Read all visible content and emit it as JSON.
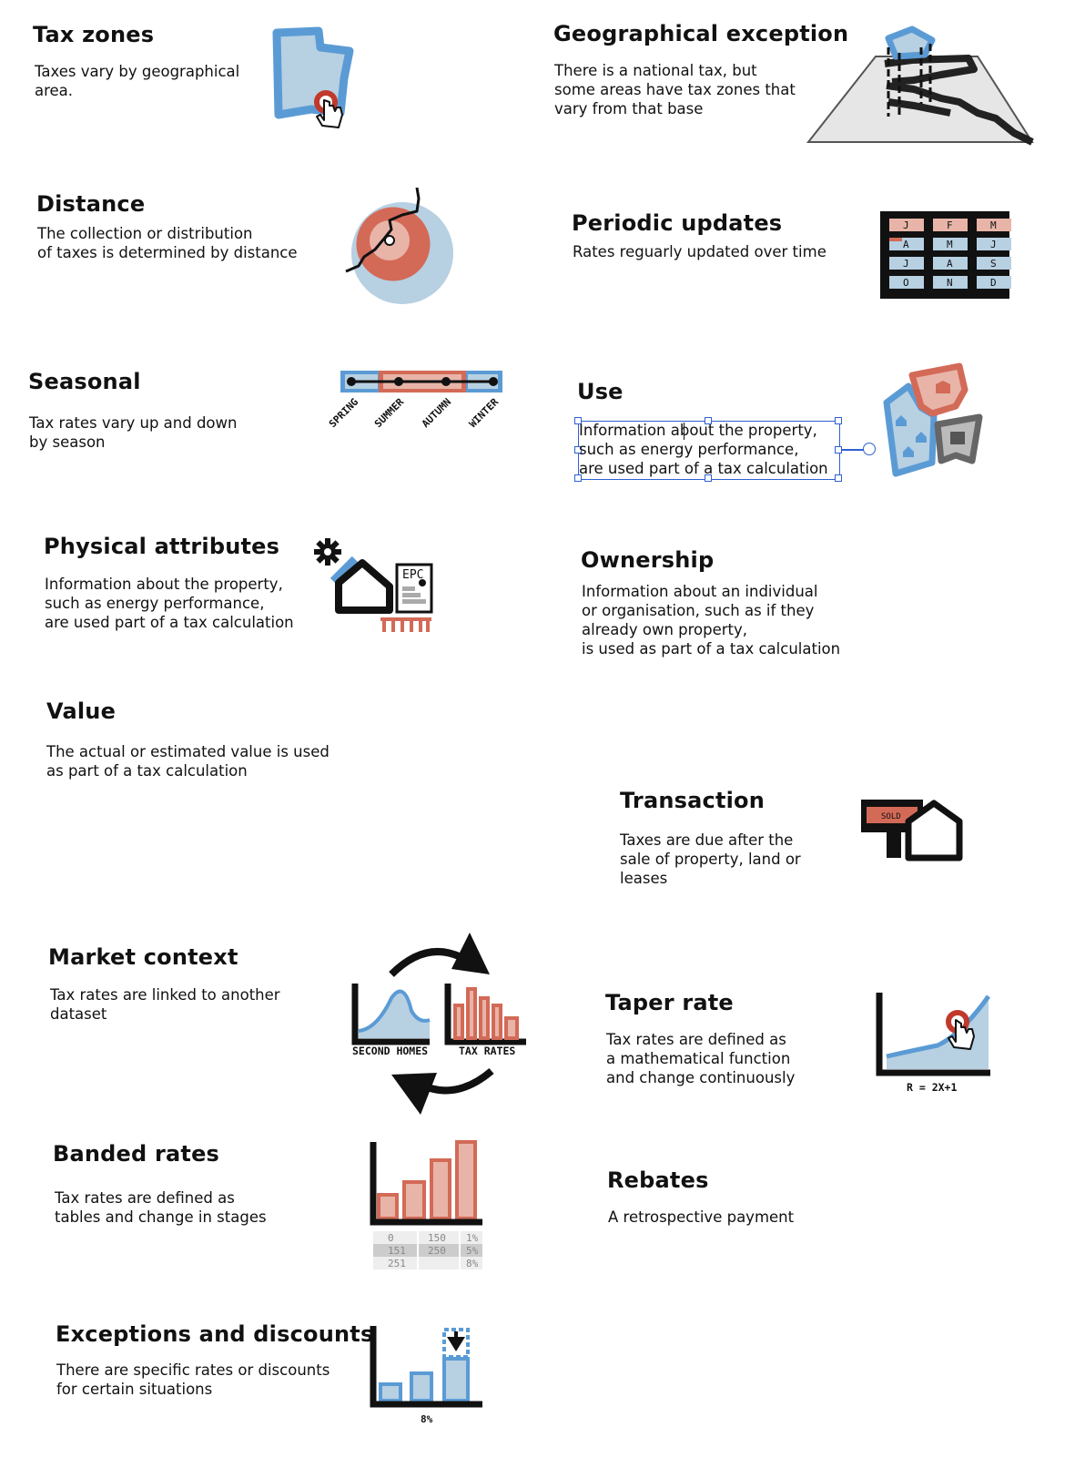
{
  "colors": {
    "blue": "#5b9bd5",
    "light_blue": "#b7d0e2",
    "red": "#d36a57",
    "light_red": "#e8b4a8",
    "black": "#111111",
    "grey": "#777777",
    "selection": "#2f5fd0"
  },
  "cards": {
    "tax_zones": {
      "title": "Tax zones",
      "desc": "Taxes vary by geographical\narea.",
      "icon": "map-zone-click-icon"
    },
    "geo_exception": {
      "title": "Geographical exception",
      "desc": "There is a national tax, but\nsome areas have tax zones that\nvary from that base",
      "icon": "raised-zone-map-icon"
    },
    "distance": {
      "title": "Distance",
      "desc": "The collection or distribution\nof taxes is determined by distance",
      "icon": "distance-radius-icon"
    },
    "periodic": {
      "title": "Periodic updates",
      "desc": "Rates reguarly updated over time",
      "icon": "calendar-grid-icon",
      "months": [
        [
          "J",
          "F",
          "M"
        ],
        [
          "A",
          "M",
          "J"
        ],
        [
          "J",
          "A",
          "S"
        ],
        [
          "O",
          "N",
          "D"
        ]
      ]
    },
    "seasonal": {
      "title": "Seasonal",
      "desc": "Tax rates vary up and down\nby season",
      "icon": "season-timeline-icon",
      "seasons": [
        "SPRING",
        "SUMMER",
        "AUTUMN",
        "WINTER"
      ]
    },
    "use": {
      "title": "Use",
      "desc": "Information about the property,\nsuch as energy performance,\nare used part of a tax calculation",
      "icon": "land-use-zones-icon"
    },
    "physical": {
      "title": "Physical attributes",
      "desc": "Information about the property,\nsuch as energy performance,\nare used part of a tax calculation",
      "icon": "house-epc-icon",
      "epc_label": "EPC"
    },
    "ownership": {
      "title": "Ownership",
      "desc": "Information about an individual\nor organisation, such as if they\nalready own property,\nis used as part of a tax calculation"
    },
    "value": {
      "title": "Value",
      "desc": "The actual or estimated value is used\nas part of a tax calculation"
    },
    "transaction": {
      "title": "Transaction",
      "desc": "Taxes are due after the\nsale of property, land or\nleases",
      "icon": "sold-sign-house-icon",
      "sign_label": "SOLD"
    },
    "market": {
      "title": "Market context",
      "desc": "Tax rates are linked to another\ndataset",
      "icon": "linked-datasets-cycle-icon",
      "left_label": "SECOND HOMES",
      "right_label": "TAX RATES"
    },
    "taper": {
      "title": "Taper rate",
      "desc": "Tax rates are defined as\na mathematical function\nand change continuously",
      "icon": "curve-chart-click-icon",
      "formula": "R = 2X+1"
    },
    "banded": {
      "title": "Banded rates",
      "desc": "Tax rates are defined as\ntables and change in stages",
      "icon": "band-bar-chart-icon",
      "table": [
        [
          "0",
          "150",
          "1%"
        ],
        [
          "151",
          "250",
          "5%"
        ],
        [
          "251",
          "",
          "8%"
        ]
      ]
    },
    "rebates": {
      "title": "Rebates",
      "desc": "A retrospective payment"
    },
    "exceptions": {
      "title": "Exceptions and discounts",
      "desc": "There are specific rates or discounts\nfor certain situations",
      "icon": "discount-bar-chart-icon",
      "rate_label": "8%"
    }
  }
}
